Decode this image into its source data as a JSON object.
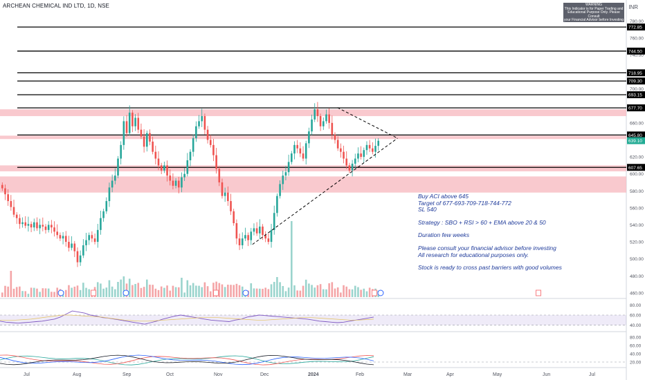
{
  "header": {
    "title": "ARCHEAN CHEMICAL IND LTD, 1D, NSE",
    "currency": "INR"
  },
  "warning": {
    "title": "WARNING",
    "line1": "This Indicator is for Paper Trading and",
    "line2": "Educational Purpose Only. Please Consult",
    "line3": "your Financial Advisor before Investing"
  },
  "notes": {
    "l1": "Buy ACI above 645",
    "l2": "Target of 677-693-709-718-744-772",
    "l3": "SL 540",
    "l4": "Strategy : SBO + RSI > 60 + EMA above 20 & 50",
    "l5": "Duration few weeks",
    "l6": "Please consult your financial advisor before investing",
    "l7": "All research for educational purposes only.",
    "l8": "Stock is ready to cross past barriers with good volumes"
  },
  "colors": {
    "up": "#26a69a",
    "down": "#ef5350",
    "zone": "#f7b7be",
    "last_price": "#22ab94",
    "rsi": "#7e57c2",
    "notes": "#1e3a9a"
  },
  "chart_data": {
    "type": "candlestick",
    "symbol": "ARCHEAN CHEMICAL IND LTD",
    "interval": "1D",
    "exchange": "NSE",
    "price_axis": {
      "ylim": [
        455,
        790
      ],
      "ticks": [
        460,
        480,
        500,
        520,
        540,
        560,
        580,
        600,
        620,
        640,
        660,
        680,
        700,
        720,
        740,
        760,
        780
      ]
    },
    "x_axis": {
      "tick_labels": [
        "Jul",
        "Aug",
        "Sep",
        "Oct",
        "Nov",
        "Dec",
        "2024",
        "Feb",
        "Mar",
        "Apr",
        "May",
        "Jun",
        "Jul"
      ]
    },
    "levels": [
      {
        "value": 772.85,
        "label": "772.85"
      },
      {
        "value": 744.5,
        "label": "744.50"
      },
      {
        "value": 718.95,
        "label": "718.95"
      },
      {
        "value": 709.3,
        "label": "709.30"
      },
      {
        "value": 693.15,
        "label": "693.15"
      },
      {
        "value": 677.7,
        "label": "677.70"
      },
      {
        "value": 645.8,
        "label": "645.80"
      },
      {
        "value": 607.65,
        "label": "607.65"
      }
    ],
    "last_price": {
      "value": 639.1,
      "label": "639.10"
    },
    "zones": [
      [
        676,
        668
      ],
      [
        645,
        641
      ],
      [
        610,
        603
      ],
      [
        597,
        578
      ]
    ],
    "triangle": {
      "upper": [
        [
          120,
          678
        ],
        [
          180,
          642
        ]
      ],
      "lower": [
        [
          60,
          517
        ],
        [
          180,
          642
        ]
      ]
    },
    "series": [
      {
        "name": "Close",
        "values": [
          583,
          576,
          568,
          561,
          552,
          548,
          541,
          543,
          539,
          541,
          537,
          543,
          536,
          540,
          538,
          534,
          540,
          537,
          532,
          528,
          524,
          527,
          520,
          513,
          518,
          509,
          496,
          504,
          516,
          522,
          528,
          524,
          520,
          534,
          548,
          556,
          568,
          584,
          592,
          598,
          618,
          634,
          662,
          648,
          672,
          656,
          666,
          652,
          644,
          632,
          648,
          638,
          626,
          618,
          610,
          604,
          610,
          598,
          592,
          586,
          592,
          584,
          596,
          600,
          616,
          626,
          642,
          656,
          662,
          668,
          652,
          640,
          634,
          622,
          606,
          590,
          574,
          578,
          568,
          556,
          542,
          524,
          516,
          524,
          528,
          522,
          532,
          536,
          530,
          538,
          528,
          524,
          520,
          534,
          554,
          574,
          588,
          598,
          602,
          614,
          624,
          634,
          630,
          624,
          618,
          636,
          650,
          664,
          676,
          668,
          656,
          662,
          670,
          660,
          646,
          640,
          630,
          626,
          618,
          610,
          604,
          612,
          618,
          624,
          620,
          628,
          634,
          630,
          626,
          633,
          639
        ]
      },
      {
        "name": "RSI",
        "values": [
          48,
          46,
          45,
          44,
          45,
          46,
          47,
          48,
          50,
          52,
          56,
          62,
          68,
          66,
          64,
          60,
          58,
          55,
          54,
          52,
          50,
          48,
          46,
          44,
          42,
          45,
          48,
          52,
          55,
          58,
          60,
          58,
          56,
          54,
          52,
          50,
          49,
          48,
          47,
          50,
          52,
          56,
          58,
          60,
          59,
          58,
          57,
          56,
          55,
          54,
          53,
          52,
          50,
          48,
          47,
          46,
          45,
          46,
          48,
          50,
          52,
          54,
          56
        ]
      },
      {
        "name": "RSI MA",
        "values": [
          50,
          50,
          50,
          51,
          52,
          54,
          56,
          58,
          60,
          60,
          59,
          58,
          57,
          56,
          54,
          52,
          50,
          49,
          48,
          48,
          49,
          50,
          51,
          52,
          53,
          54,
          55,
          55,
          55,
          54,
          53,
          52,
          51,
          50,
          50,
          51,
          52,
          53,
          54,
          55,
          55,
          54,
          53,
          52,
          51,
          50,
          50,
          51,
          52
        ]
      }
    ],
    "rsi_axis": {
      "ticks": [
        40,
        60,
        80
      ]
    },
    "lower_indicator_axis": {
      "ticks": [
        20,
        40,
        60,
        80
      ]
    }
  }
}
